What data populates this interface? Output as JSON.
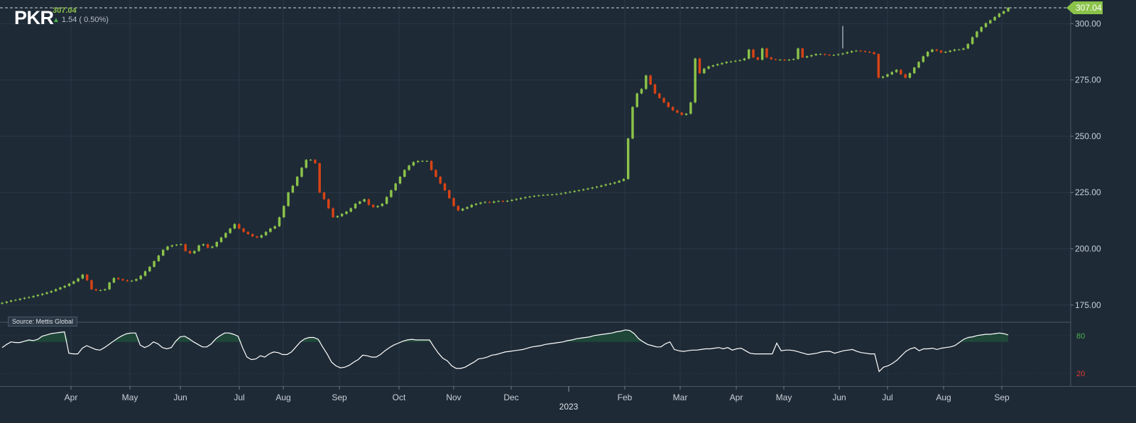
{
  "header": {
    "ticker": "PKR",
    "last_price": "307.04",
    "change": "1.54 ( 0.50%)",
    "direction_icon": "up-arrow-icon"
  },
  "source_label": "Source: Mettis Global",
  "price_tag": "307.04",
  "year_label": "2023",
  "colors": {
    "background": "#1e2a36",
    "up_candle": "#8bc34a",
    "down_candle": "#d84315",
    "price_tag": "#8bc34a",
    "oscillator_line": "#ffffff",
    "grid": "#2a3846"
  },
  "chart_data": [
    {
      "type": "candlestick",
      "x_ticks": [
        "Apr",
        "May",
        "Jun",
        "Jul",
        "Aug",
        "Sep",
        "Oct",
        "Nov",
        "Dec",
        "Feb",
        "Mar",
        "Apr",
        "May",
        "Jun",
        "Jul",
        "Aug",
        "Sep"
      ],
      "y_ticks": [
        "300.00",
        "275.00",
        "250.00",
        "225.00",
        "200.00",
        "175.00"
      ],
      "ylim": [
        168,
        308
      ],
      "last_value": 307.04,
      "series": [
        {
          "values": [
            176,
            176.5,
            177,
            177.3,
            177.8,
            178.2,
            178.5,
            179,
            179.5,
            180,
            180.6,
            181.2,
            182,
            182.8,
            183.5,
            184.5,
            185.5,
            186.8,
            188.5,
            186,
            182,
            181.5,
            181.6,
            182,
            185,
            187,
            186.5,
            186,
            185.6,
            185.8,
            186.5,
            188,
            190,
            192,
            194.5,
            197,
            199.5,
            201,
            201.5,
            201.8,
            202,
            199,
            198,
            199,
            201.5,
            202,
            200.5,
            201,
            203,
            205,
            207,
            209,
            211,
            209,
            207.5,
            206.5,
            205.5,
            205,
            206,
            207.5,
            209,
            210,
            214,
            219,
            225,
            228,
            232,
            236,
            239.5,
            239.5,
            238,
            225,
            222,
            218,
            214,
            214.5,
            215.5,
            216.5,
            218,
            220,
            221,
            222,
            219.5,
            218.5,
            219,
            220,
            223,
            226,
            229,
            232,
            235,
            237,
            238.5,
            239,
            239,
            239,
            235,
            232,
            229,
            226,
            222.5,
            219,
            217,
            217.8,
            218.5,
            219.5,
            220,
            220.5,
            220.8,
            220.5,
            221,
            221.2,
            221,
            221.3,
            221.7,
            222.1,
            222.5,
            222.9,
            223.2,
            223.5,
            223.7,
            223.9,
            224,
            224.1,
            224.3,
            224.6,
            225,
            225.3,
            225.7,
            226,
            226.4,
            226.8,
            227.2,
            227.6,
            228.1,
            228.6,
            229,
            229.5,
            230.2,
            231,
            249,
            263,
            269,
            271,
            277,
            273,
            269,
            267,
            265,
            263,
            261.5,
            260.5,
            259.5,
            260,
            265,
            284.5,
            278,
            280,
            281,
            281.5,
            282,
            282.5,
            283,
            283.2,
            283.5,
            283.8,
            284.5,
            288.5,
            285,
            284,
            289,
            285,
            284.2,
            284,
            284,
            283.8,
            284,
            284.3,
            289,
            285,
            285.5,
            286,
            286.5,
            286.5,
            286.2,
            286,
            286.1,
            286.4,
            286.8,
            287.3,
            287.8,
            288,
            287.8,
            287.5,
            287.3,
            286.5,
            276,
            276.5,
            277.5,
            278.5,
            279.5,
            277.5,
            276,
            278,
            280.5,
            283,
            285.5,
            287.5,
            288.5,
            288,
            287.2,
            287.5,
            288,
            288.5,
            288.5,
            289,
            291,
            294,
            296.5,
            298.5,
            300.2,
            301.5,
            303,
            304.5,
            305.5,
            307.04
          ]
        }
      ]
    },
    {
      "type": "line",
      "y_ticks": [
        "80",
        "20"
      ],
      "ylim": [
        0,
        100
      ],
      "series": [
        {
          "values": [
            61,
            66,
            70,
            69,
            69,
            71,
            73,
            72,
            74,
            79,
            81,
            83,
            84,
            85,
            86,
            52,
            51,
            51,
            60,
            64,
            61,
            58,
            57,
            61,
            66,
            71,
            76,
            80,
            83,
            84,
            84,
            65,
            61,
            64,
            70,
            67,
            61,
            59,
            61,
            71,
            78,
            79,
            75,
            70,
            66,
            62,
            62,
            67,
            75,
            80,
            84,
            84,
            82,
            79,
            61,
            46,
            42,
            43,
            48,
            46,
            51,
            54,
            53,
            50,
            50,
            54,
            62,
            70,
            75,
            77,
            77,
            74,
            62,
            51,
            38,
            32,
            29,
            30,
            33,
            38,
            42,
            49,
            48,
            46,
            46,
            50,
            56,
            61,
            65,
            68,
            71,
            73,
            74,
            73,
            73,
            73,
            73,
            62,
            52,
            44,
            40,
            32,
            28,
            28,
            30,
            34,
            38,
            43,
            44,
            46,
            49,
            50,
            52,
            54,
            55,
            56,
            57,
            58,
            60,
            62,
            63,
            64,
            66,
            67,
            68,
            69,
            70,
            72,
            73,
            75,
            76,
            77,
            78,
            80,
            81,
            82,
            83,
            84,
            86,
            87,
            89,
            88,
            83,
            75,
            70,
            66,
            64,
            62,
            62,
            67,
            70,
            58,
            56,
            55,
            56,
            57,
            57,
            58,
            59,
            59,
            60,
            61,
            59,
            61,
            57,
            59,
            60,
            56,
            52,
            51,
            51,
            51,
            51,
            51,
            68,
            56,
            57,
            57,
            56,
            54,
            52,
            50,
            51,
            52,
            54,
            55,
            55,
            52,
            54,
            56,
            57,
            58,
            55,
            53,
            52,
            51,
            51,
            23,
            30,
            32,
            36,
            41,
            48,
            55,
            59,
            61,
            56,
            59,
            59,
            60,
            58,
            60,
            61,
            62,
            64,
            69,
            74,
            77,
            78,
            80,
            81,
            82,
            82,
            83,
            84,
            83,
            81
          ]
        }
      ]
    }
  ]
}
